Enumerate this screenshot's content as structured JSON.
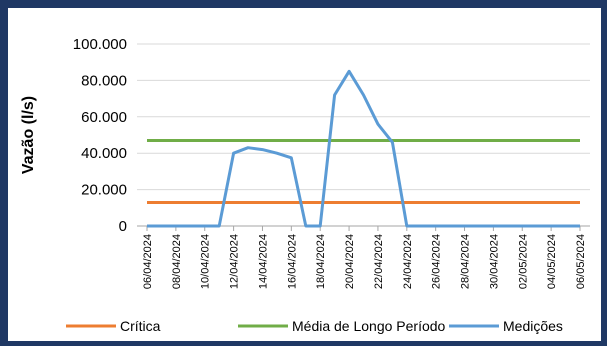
{
  "chart_data": {
    "type": "line",
    "title": "",
    "xlabel": "",
    "ylabel": "Vazão (l/s)",
    "ylim": [
      0,
      100000
    ],
    "y_ticks": [
      "0",
      "20.000",
      "40.000",
      "60.000",
      "80.000",
      "100.000"
    ],
    "y_tick_values": [
      0,
      20000,
      40000,
      60000,
      80000,
      100000
    ],
    "x_tick_labels": [
      "06/04/2024",
      "08/04/2024",
      "10/04/2024",
      "12/04/2024",
      "14/04/2024",
      "16/04/2024",
      "18/04/2024",
      "20/04/2024",
      "22/04/2024",
      "24/04/2024",
      "26/04/2024",
      "28/04/2024",
      "30/04/2024",
      "02/05/2024",
      "04/05/2024",
      "06/05/2024"
    ],
    "grid": true,
    "legend_position": "bottom",
    "series": [
      {
        "name": "Crítica",
        "color": "#ed7d31",
        "x": [
          "06/04/2024",
          "06/05/2024"
        ],
        "values": [
          12900,
          12900
        ]
      },
      {
        "name": "Média de Longo Período",
        "color": "#70ad47",
        "x": [
          "06/04/2024",
          "06/05/2024"
        ],
        "values": [
          47000,
          47000
        ]
      },
      {
        "name": "Medições",
        "color": "#5b9bd5",
        "x": [
          "06/04/2024",
          "08/04/2024",
          "10/04/2024",
          "11/04/2024",
          "12/04/2024",
          "13/04/2024",
          "14/04/2024",
          "15/04/2024",
          "16/04/2024",
          "17/04/2024",
          "18/04/2024",
          "19/04/2024",
          "20/04/2024",
          "21/04/2024",
          "22/04/2024",
          "23/04/2024",
          "24/04/2024",
          "26/04/2024",
          "30/04/2024",
          "04/05/2024",
          "06/05/2024"
        ],
        "values": [
          0,
          0,
          0,
          0,
          40000,
          43000,
          42000,
          40000,
          37500,
          0,
          0,
          72000,
          85000,
          72000,
          56000,
          46000,
          0,
          0,
          0,
          0,
          0
        ]
      }
    ]
  }
}
